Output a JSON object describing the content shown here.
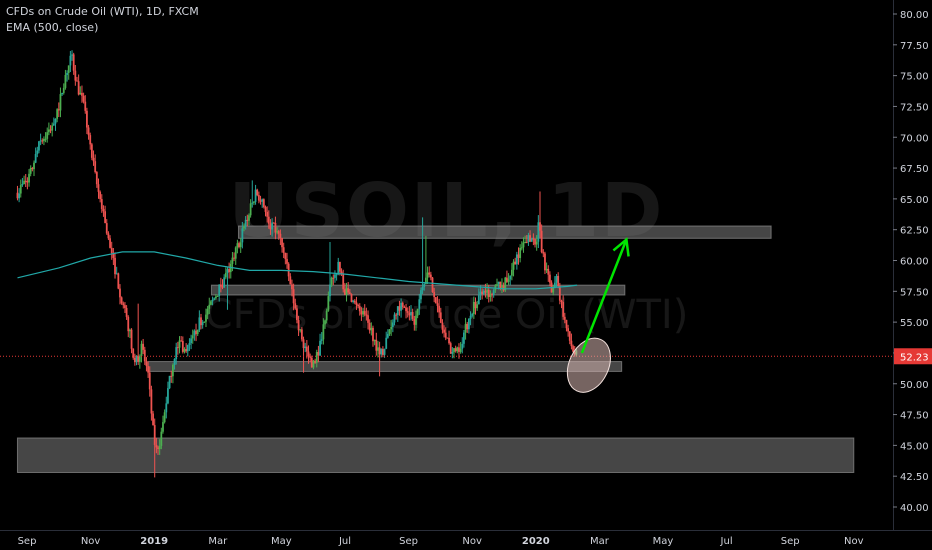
{
  "legend": {
    "title": "CFDs on Crude Oil (WTI), 1D, FXCM",
    "indicator": "EMA (500, close)"
  },
  "watermark": {
    "symbol": "USOIL, 1D",
    "description": "CFDs on Crude Oil (WTI)"
  },
  "colors": {
    "background": "#000000",
    "up_candle": "#26a69a",
    "down_candle": "#ef5350",
    "up_candle_bright": "#4caf50",
    "ema": "#21a8a8",
    "price_line": "#e53935",
    "price_badge": "#e53935",
    "zone": "#808080",
    "arrow": "#00e600",
    "axis_text": "#d1d4dc"
  },
  "chart_data": {
    "type": "candlestick",
    "symbol": "USOIL",
    "timeframe": "1D",
    "ylim": [
      40,
      80
    ],
    "y_ticks": [
      "40.00",
      "42.50",
      "45.00",
      "47.50",
      "50.00",
      "52.50",
      "55.00",
      "57.50",
      "60.00",
      "62.50",
      "65.00",
      "67.50",
      "70.00",
      "72.50",
      "75.00",
      "77.50",
      "80.00"
    ],
    "x_ticks": [
      "Sep",
      "Nov",
      "2019",
      "Mar",
      "May",
      "Jul",
      "Sep",
      "Nov",
      "2020",
      "Mar",
      "May",
      "Jul",
      "Sep",
      "Nov"
    ],
    "x_tick_months": [
      0,
      2,
      4,
      6,
      8,
      10,
      12,
      14,
      16,
      18,
      20,
      22,
      24,
      26
    ],
    "last_price": "52.23",
    "price_path": [
      {
        "m": -0.3,
        "p": 65.5
      },
      {
        "m": 0.1,
        "p": 67.0
      },
      {
        "m": 0.4,
        "p": 69.5
      },
      {
        "m": 0.7,
        "p": 70.5
      },
      {
        "m": 1.0,
        "p": 72.5
      },
      {
        "m": 1.2,
        "p": 75.0
      },
      {
        "m": 1.4,
        "p": 76.5
      },
      {
        "m": 1.6,
        "p": 74.0
      },
      {
        "m": 1.8,
        "p": 72.5
      },
      {
        "m": 2.0,
        "p": 69.0
      },
      {
        "m": 2.2,
        "p": 66.0
      },
      {
        "m": 2.4,
        "p": 64.0
      },
      {
        "m": 2.6,
        "p": 61.0
      },
      {
        "m": 2.8,
        "p": 59.0
      },
      {
        "m": 3.0,
        "p": 56.5
      },
      {
        "m": 3.2,
        "p": 54.5
      },
      {
        "m": 3.4,
        "p": 51.5
      },
      {
        "m": 3.6,
        "p": 53.0
      },
      {
        "m": 3.8,
        "p": 51.0
      },
      {
        "m": 3.95,
        "p": 46.5
      },
      {
        "m": 4.05,
        "p": 44.5
      },
      {
        "m": 4.2,
        "p": 45.5
      },
      {
        "m": 4.4,
        "p": 49.0
      },
      {
        "m": 4.6,
        "p": 52.0
      },
      {
        "m": 4.8,
        "p": 53.5
      },
      {
        "m": 5.0,
        "p": 52.5
      },
      {
        "m": 5.2,
        "p": 53.5
      },
      {
        "m": 5.4,
        "p": 55.0
      },
      {
        "m": 5.6,
        "p": 55.5
      },
      {
        "m": 5.8,
        "p": 56.5
      },
      {
        "m": 6.0,
        "p": 57.5
      },
      {
        "m": 6.2,
        "p": 58.5
      },
      {
        "m": 6.4,
        "p": 59.5
      },
      {
        "m": 6.6,
        "p": 61.0
      },
      {
        "m": 6.8,
        "p": 62.5
      },
      {
        "m": 7.0,
        "p": 64.0
      },
      {
        "m": 7.2,
        "p": 65.5
      },
      {
        "m": 7.4,
        "p": 65.0
      },
      {
        "m": 7.6,
        "p": 63.0
      },
      {
        "m": 7.8,
        "p": 62.5
      },
      {
        "m": 8.0,
        "p": 61.5
      },
      {
        "m": 8.2,
        "p": 59.0
      },
      {
        "m": 8.4,
        "p": 56.5
      },
      {
        "m": 8.6,
        "p": 54.0
      },
      {
        "m": 8.8,
        "p": 52.5
      },
      {
        "m": 9.0,
        "p": 51.5
      },
      {
        "m": 9.2,
        "p": 53.0
      },
      {
        "m": 9.4,
        "p": 56.0
      },
      {
        "m": 9.6,
        "p": 58.5
      },
      {
        "m": 9.8,
        "p": 59.5
      },
      {
        "m": 10.0,
        "p": 57.5
      },
      {
        "m": 10.2,
        "p": 57.0
      },
      {
        "m": 10.4,
        "p": 56.0
      },
      {
        "m": 10.6,
        "p": 55.5
      },
      {
        "m": 10.8,
        "p": 54.5
      },
      {
        "m": 11.0,
        "p": 53.0
      },
      {
        "m": 11.2,
        "p": 52.5
      },
      {
        "m": 11.4,
        "p": 54.5
      },
      {
        "m": 11.6,
        "p": 56.0
      },
      {
        "m": 11.8,
        "p": 56.5
      },
      {
        "m": 12.0,
        "p": 56.0
      },
      {
        "m": 12.2,
        "p": 55.0
      },
      {
        "m": 12.4,
        "p": 57.5
      },
      {
        "m": 12.6,
        "p": 59.0
      },
      {
        "m": 12.8,
        "p": 57.5
      },
      {
        "m": 13.0,
        "p": 55.0
      },
      {
        "m": 13.2,
        "p": 53.5
      },
      {
        "m": 13.4,
        "p": 52.5
      },
      {
        "m": 13.6,
        "p": 53.0
      },
      {
        "m": 13.8,
        "p": 54.5
      },
      {
        "m": 14.0,
        "p": 56.0
      },
      {
        "m": 14.2,
        "p": 57.0
      },
      {
        "m": 14.4,
        "p": 57.5
      },
      {
        "m": 14.6,
        "p": 57.0
      },
      {
        "m": 14.8,
        "p": 58.0
      },
      {
        "m": 15.0,
        "p": 58.0
      },
      {
        "m": 15.2,
        "p": 59.0
      },
      {
        "m": 15.4,
        "p": 60.5
      },
      {
        "m": 15.6,
        "p": 61.0
      },
      {
        "m": 15.8,
        "p": 62.0
      },
      {
        "m": 16.0,
        "p": 61.5
      },
      {
        "m": 16.1,
        "p": 63.0
      },
      {
        "m": 16.2,
        "p": 60.5
      },
      {
        "m": 16.35,
        "p": 59.0
      },
      {
        "m": 16.5,
        "p": 57.5
      },
      {
        "m": 16.65,
        "p": 58.5
      },
      {
        "m": 16.8,
        "p": 56.5
      },
      {
        "m": 17.0,
        "p": 54.0
      },
      {
        "m": 17.2,
        "p": 52.5
      },
      {
        "m": 17.3,
        "p": 52.2
      }
    ],
    "spikes": [
      {
        "m": 1.35,
        "p": 77.0
      },
      {
        "m": 3.5,
        "p": 56.5
      },
      {
        "m": 4.0,
        "p": 42.4
      },
      {
        "m": 6.3,
        "p": 56.0
      },
      {
        "m": 7.1,
        "p": 66.5
      },
      {
        "m": 8.7,
        "p": 50.9
      },
      {
        "m": 9.55,
        "p": 61.5
      },
      {
        "m": 11.1,
        "p": 50.6
      },
      {
        "m": 12.45,
        "p": 63.5
      },
      {
        "m": 12.55,
        "p": 62.0
      },
      {
        "m": 16.12,
        "p": 65.6
      }
    ],
    "ema_500": [
      {
        "m": -0.3,
        "p": 58.6
      },
      {
        "m": 1.0,
        "p": 59.4
      },
      {
        "m": 2.0,
        "p": 60.2
      },
      {
        "m": 3.0,
        "p": 60.7
      },
      {
        "m": 4.0,
        "p": 60.7
      },
      {
        "m": 5.0,
        "p": 60.2
      },
      {
        "m": 6.0,
        "p": 59.6
      },
      {
        "m": 7.0,
        "p": 59.2
      },
      {
        "m": 8.0,
        "p": 59.2
      },
      {
        "m": 9.0,
        "p": 59.1
      },
      {
        "m": 10.0,
        "p": 58.9
      },
      {
        "m": 11.0,
        "p": 58.6
      },
      {
        "m": 12.0,
        "p": 58.3
      },
      {
        "m": 13.0,
        "p": 58.1
      },
      {
        "m": 14.0,
        "p": 57.9
      },
      {
        "m": 15.0,
        "p": 57.7
      },
      {
        "m": 16.0,
        "p": 57.7
      },
      {
        "m": 17.0,
        "p": 57.9
      },
      {
        "m": 17.3,
        "p": 58.0
      }
    ],
    "zones": [
      {
        "m_from": 6.65,
        "m_to": 23.4,
        "p_low": 61.8,
        "p_high": 62.8
      },
      {
        "m_from": 5.8,
        "m_to": 18.8,
        "p_low": 57.2,
        "p_high": 58.0
      },
      {
        "m_from": 3.8,
        "m_to": 18.7,
        "p_low": 51.0,
        "p_high": 51.8
      },
      {
        "m_from": -0.3,
        "m_to": 26.0,
        "p_low": 42.8,
        "p_high": 45.6
      }
    ],
    "annotations": {
      "ellipse": {
        "m": 17.67,
        "p": 51.5,
        "rm": 0.62,
        "rp": 2.3
      },
      "arrow": {
        "m_from": 17.45,
        "p_from": 52.5,
        "m_to": 18.85,
        "p_to": 61.7
      }
    }
  }
}
